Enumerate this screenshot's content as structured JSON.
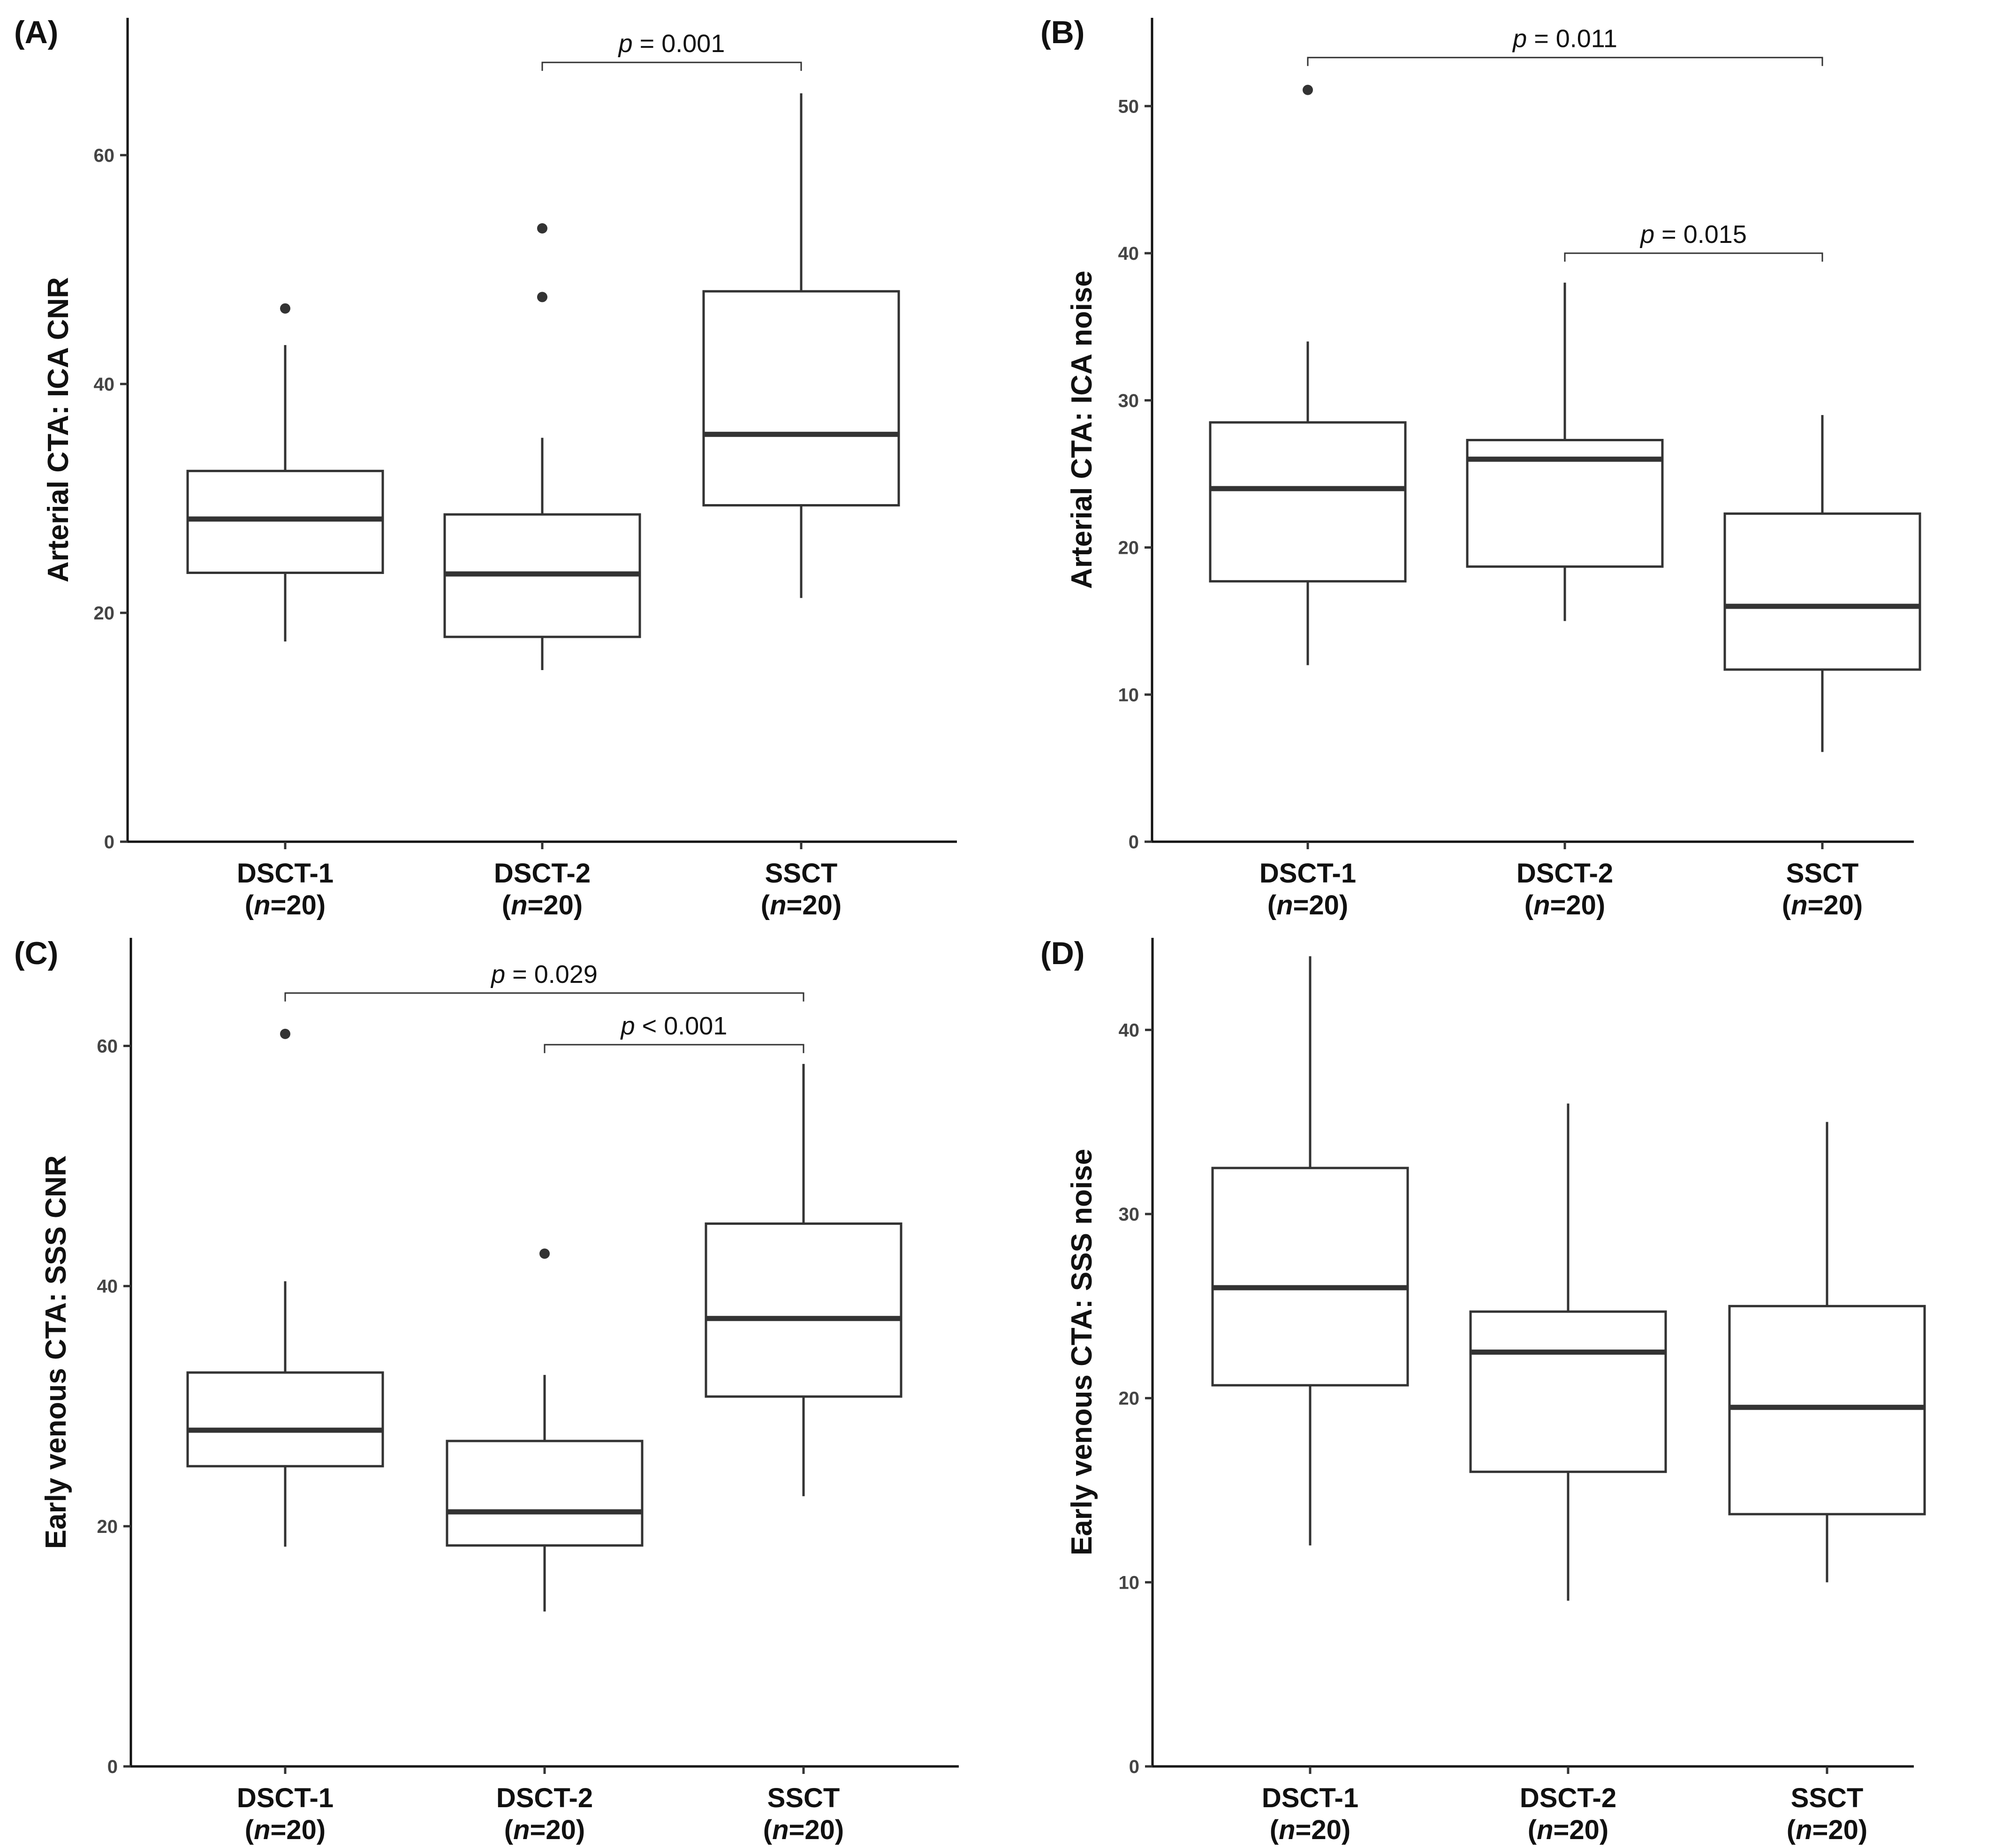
{
  "chart_data": [
    {
      "panel": "(A)",
      "type": "box",
      "ylabel": "Arterial CTA: ICA CNR",
      "ylim": [
        0,
        72
      ],
      "yticks": [
        0,
        20,
        40,
        60
      ],
      "categories": [
        {
          "name": "DSCT-1",
          "n": "20",
          "min": 17.5,
          "q1": 23.5,
          "median": 28.2,
          "q3": 32.4,
          "max": 43.4,
          "outliers": [
            46.6
          ]
        },
        {
          "name": "DSCT-2",
          "n": "20",
          "min": 15,
          "q1": 17.9,
          "median": 23.4,
          "q3": 28.6,
          "max": 35.3,
          "outliers": [
            47.6,
            53.6
          ]
        },
        {
          "name": "SSCT",
          "n": "20",
          "min": 21.3,
          "q1": 29.4,
          "median": 35.6,
          "q3": 48.1,
          "max": 65.4,
          "outliers": []
        }
      ],
      "comparisons": [
        {
          "from": "DSCT-2",
          "to": "SSCT",
          "y": 68.1,
          "p_symbol": "p",
          "p_text": " = 0.001"
        }
      ]
    },
    {
      "panel": "(B)",
      "type": "box",
      "ylabel": "Arterial CTA: ICA noise",
      "ylim": [
        0,
        56
      ],
      "yticks": [
        0,
        10,
        20,
        30,
        40,
        50
      ],
      "categories": [
        {
          "name": "DSCT-1",
          "n": "20",
          "min": 12,
          "q1": 17.7,
          "median": 24,
          "q3": 28.5,
          "max": 34,
          "outliers": [
            51.1
          ]
        },
        {
          "name": "DSCT-2",
          "n": "20",
          "min": 15,
          "q1": 18.7,
          "median": 26,
          "q3": 27.3,
          "max": 38,
          "outliers": []
        },
        {
          "name": "SSCT",
          "n": "20",
          "min": 6.1,
          "q1": 11.7,
          "median": 16,
          "q3": 22.3,
          "max": 29,
          "outliers": []
        }
      ],
      "comparisons": [
        {
          "from": "DSCT-1",
          "to": "SSCT",
          "y": 53.3,
          "p_symbol": "p",
          "p_text": " = 0.011"
        },
        {
          "from": "DSCT-2",
          "to": "SSCT",
          "y": 40,
          "p_symbol": "p",
          "p_text": " = 0.015"
        }
      ]
    },
    {
      "panel": "(C)",
      "type": "box",
      "ylabel": "Early venous CTA: SSS CNR",
      "ylim": [
        0,
        69
      ],
      "yticks": [
        0,
        20,
        40,
        60
      ],
      "categories": [
        {
          "name": "DSCT-1",
          "n": "20",
          "min": 18.3,
          "q1": 25,
          "median": 28,
          "q3": 32.8,
          "max": 40.4,
          "outliers": [
            61
          ]
        },
        {
          "name": "DSCT-2",
          "n": "20",
          "min": 12.9,
          "q1": 18.4,
          "median": 21.2,
          "q3": 27.1,
          "max": 32.6,
          "outliers": [
            42.7
          ]
        },
        {
          "name": "SSCT",
          "n": "20",
          "min": 22.5,
          "q1": 30.8,
          "median": 37.3,
          "q3": 45.2,
          "max": 58.5,
          "outliers": []
        }
      ],
      "comparisons": [
        {
          "from": "DSCT-1",
          "to": "SSCT",
          "y": 64.4,
          "p_symbol": "p",
          "p_text": " = 0.029"
        },
        {
          "from": "DSCT-2",
          "to": "SSCT",
          "y": 60.1,
          "p_symbol": "p",
          "p_text": " < 0.001"
        }
      ]
    },
    {
      "panel": "(D)",
      "type": "box",
      "ylabel": "Early venous CTA: SSS noise",
      "ylim": [
        0,
        45
      ],
      "yticks": [
        0,
        10,
        20,
        30,
        40
      ],
      "categories": [
        {
          "name": "DSCT-1",
          "n": "20",
          "min": 12,
          "q1": 20.7,
          "median": 26,
          "q3": 32.5,
          "max": 44,
          "outliers": []
        },
        {
          "name": "DSCT-2",
          "n": "20",
          "min": 9,
          "q1": 16,
          "median": 22.5,
          "q3": 24.7,
          "max": 36,
          "outliers": []
        },
        {
          "name": "SSCT",
          "n": "20",
          "min": 10,
          "q1": 13.7,
          "median": 19.5,
          "q3": 25,
          "max": 35,
          "outliers": []
        }
      ],
      "comparisons": []
    }
  ]
}
